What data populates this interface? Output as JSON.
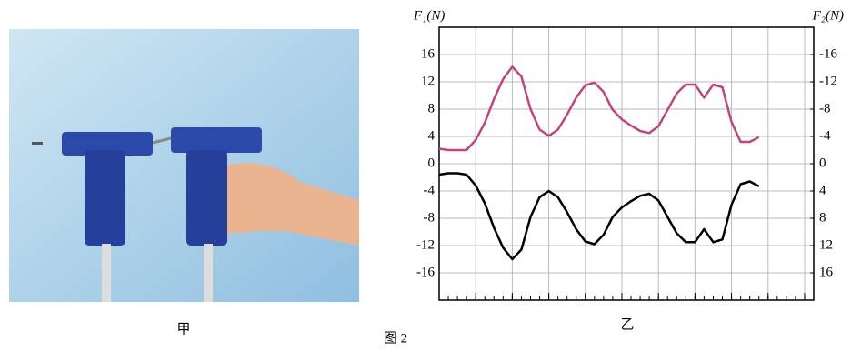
{
  "chart_data": {
    "type": "line",
    "y_label": "F₁(N)",
    "y2_label": "F₂(N)",
    "x_label": "乙",
    "photo_label": "甲",
    "figure_label": "图 2",
    "x": [
      0,
      1,
      2,
      3,
      4,
      5,
      6,
      7,
      8,
      9,
      10,
      11,
      12,
      13,
      14,
      15,
      16,
      17,
      18,
      19,
      20,
      21,
      22,
      23,
      24,
      25,
      26,
      27,
      28,
      29,
      30,
      31,
      32,
      33,
      34,
      35
    ],
    "xlim": [
      0,
      41
    ],
    "xticks": [
      0,
      4,
      8,
      12,
      16,
      20,
      24,
      28,
      32,
      36,
      40
    ],
    "ylim": [
      -20,
      20
    ],
    "yticks": [
      16,
      12,
      8,
      4,
      0,
      -4,
      -8,
      -12,
      -16
    ],
    "y2lim": [
      20,
      -20
    ],
    "y2ticks": [
      -16,
      -12,
      -8,
      -4,
      0,
      4,
      8,
      12,
      16
    ],
    "grid": true,
    "series": [
      {
        "color": "#c0457f",
        "values": [
          2.2,
          2,
          2,
          2,
          3.5,
          6,
          9.5,
          12.4,
          14.2,
          12.8,
          8,
          5,
          4.1,
          5,
          7.2,
          9.7,
          11.5,
          11.9,
          10.5,
          7.9,
          6.5,
          5.6,
          4.8,
          4.5,
          5.5,
          7.9,
          10.3,
          11.6,
          11.6,
          9.7,
          11.6,
          11.2,
          6.1,
          3.2,
          3.2,
          3.9
        ]
      },
      {
        "color": "#000000",
        "axis": "y2",
        "values": [
          1.6,
          1.4,
          1.4,
          1.6,
          3.2,
          5.8,
          9.4,
          12.3,
          14,
          12.6,
          7.8,
          4.9,
          4,
          4.9,
          7.1,
          9.6,
          11.4,
          11.8,
          10.4,
          7.8,
          6.4,
          5.5,
          4.7,
          4.4,
          5.4,
          7.8,
          10.2,
          11.5,
          11.5,
          9.6,
          11.5,
          11.1,
          6,
          3,
          2.6,
          3.3
        ]
      }
    ]
  }
}
